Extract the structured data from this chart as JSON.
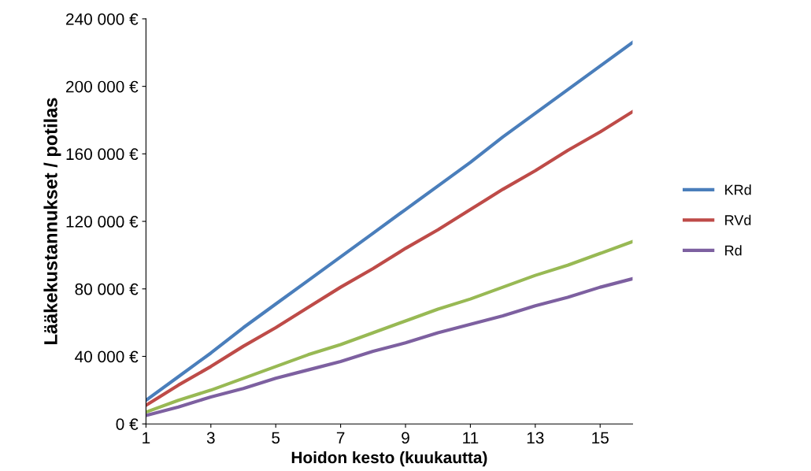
{
  "chart_data": {
    "type": "line",
    "xlabel": "Hoidon kesto (kuukautta)",
    "ylabel": "Lääkekustannukset / potilas",
    "x": [
      1,
      2,
      3,
      4,
      5,
      6,
      7,
      8,
      9,
      10,
      11,
      12,
      13,
      14,
      15,
      16
    ],
    "series": [
      {
        "name": "KRd",
        "color": "#4a7ebb",
        "values": [
          14000,
          28000,
          42000,
          57000,
          71000,
          85000,
          99000,
          113000,
          127000,
          141000,
          155000,
          170000,
          184000,
          198000,
          212000,
          226000
        ]
      },
      {
        "name": "RVd",
        "color": "#be4b48",
        "values": [
          11000,
          23000,
          34000,
          46000,
          57000,
          69000,
          81000,
          92000,
          104000,
          115000,
          127000,
          139000,
          150000,
          162000,
          173000,
          185000
        ]
      },
      {
        "color": "#98b954",
        "values": [
          7000,
          14000,
          20000,
          27000,
          34000,
          41000,
          47000,
          54000,
          61000,
          68000,
          74000,
          81000,
          88000,
          94000,
          101000,
          108000
        ]
      },
      {
        "name": "Rd",
        "color": "#7d60a0",
        "values": [
          5000,
          10000,
          16000,
          21000,
          27000,
          32000,
          37000,
          43000,
          48000,
          54000,
          59000,
          64000,
          70000,
          75000,
          81000,
          86000
        ]
      }
    ],
    "xlim": [
      1,
      16
    ],
    "xticks": [
      1,
      3,
      5,
      7,
      9,
      11,
      13,
      15
    ],
    "ylim": [
      0,
      240000
    ],
    "yticks": [
      {
        "value": 0,
        "label": "0 €"
      },
      {
        "value": 40000,
        "label": "40 000 €"
      },
      {
        "value": 80000,
        "label": "80 000 €"
      },
      {
        "value": 120000,
        "label": "120 000 €"
      },
      {
        "value": 160000,
        "label": "160 000 €"
      },
      {
        "value": 200000,
        "label": "200 000 €"
      },
      {
        "value": 240000,
        "label": "240 000 €"
      }
    ],
    "grid": false,
    "legend": "right",
    "marker": "none",
    "line_style": "solid"
  }
}
